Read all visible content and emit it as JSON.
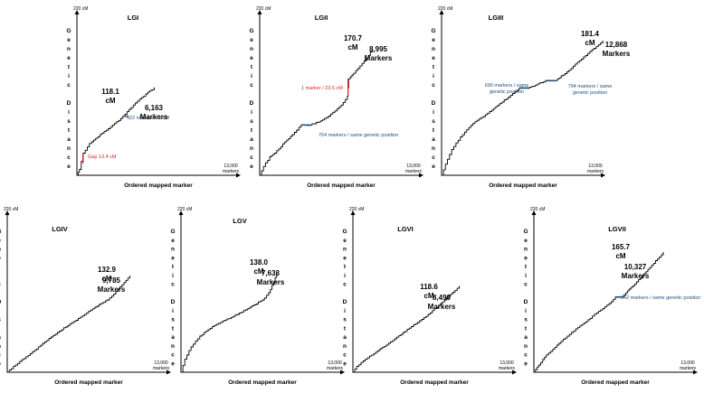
{
  "figure": {
    "y_axis_max_label": "220 cM",
    "x_axis_max_label": [
      "13,000",
      "markers"
    ],
    "x_axis_title": "Ordered mapped marker",
    "y_axis_title_letters": [
      "G",
      "e",
      "n",
      "e",
      "t",
      "i",
      "c",
      "",
      "D",
      "i",
      "s",
      "t",
      "a",
      "n",
      "c",
      "e"
    ],
    "colors": {
      "curve": "#000000",
      "blue_annotation": "#1f4e79",
      "red_annotation": "#e02020",
      "axis": "#000000"
    }
  },
  "chart_data": [
    {
      "type": "line",
      "title": "LGI",
      "xlim": [
        0,
        13000
      ],
      "ylim": [
        0,
        220
      ],
      "total_markers": 6163,
      "max_cM": 118.1,
      "label_cM": "118.1",
      "label_cM_unit": "cM",
      "label_markers": "6,163",
      "label_markers_unit": "Markers",
      "series": [
        {
          "values": {
            "x": [
              0,
              200,
              500,
              1000,
              1500,
              2000,
              2500,
              3000,
              3500,
              4000,
              4500,
              5000,
              5500,
              6163
            ],
            "y": [
              0,
              8,
              30,
              43,
              50,
              57,
              63,
              70,
              77,
              86,
              95,
              103,
              110,
              118.1
            ]
          }
        }
      ],
      "annotations": [
        {
          "text": "Gap 13.4 cM",
          "color": "red",
          "x": 480,
          "y1": 16,
          "y2": 29.4
        },
        {
          "text": "422  markers / 1 cM",
          "color": "blue",
          "x1": 3650,
          "x2": 4072,
          "y": 80
        }
      ]
    },
    {
      "type": "line",
      "title": "LGII",
      "xlim": [
        0,
        13000
      ],
      "ylim": [
        0,
        220
      ],
      "total_markers": 8995,
      "max_cM": 170.7,
      "label_cM": "170.7",
      "label_cM_unit": "cM",
      "label_markers": "8,995",
      "label_markers_unit": "Markers",
      "series": [
        {
          "values": {
            "x": [
              0,
              300,
              800,
              1200,
              2000,
              2600,
              3300,
              4000,
              4700,
              5500,
              6500,
              7000,
              7100,
              7500,
              8000,
              8500,
              8995
            ],
            "y": [
              0,
              12,
              25,
              30,
              45,
              55,
              68,
              68,
              72,
              80,
              95,
              107,
              130.5,
              138,
              148,
              158,
              170.7
            ]
          }
        }
      ],
      "annotations": [
        {
          "text": "1 marker / 23.5 cM",
          "color": "red",
          "x": 7050,
          "y1": 107,
          "y2": 130.5
        },
        {
          "text": "704 markers / same genetic position",
          "color": "blue",
          "x1": 3300,
          "x2": 4004,
          "y": 68
        }
      ]
    },
    {
      "type": "line",
      "title": "LGIII",
      "xlim": [
        0,
        13000
      ],
      "ylim": [
        0,
        220
      ],
      "total_markers": 12868,
      "max_cM": 181.4,
      "label_cM": "181.4",
      "label_cM_unit": "cM",
      "label_markers": "12,868",
      "label_markers_unit": "Markers",
      "series": [
        {
          "values": {
            "x": [
              0,
              300,
              800,
              1500,
              2500,
              3500,
              4500,
              5500,
              6200,
              6890,
              7500,
              8300,
              9094,
              10000,
              11000,
              12000,
              12868
            ],
            "y": [
              0,
              15,
              35,
              52,
              70,
              82,
              95,
              108,
              118,
              118,
              122,
              128,
              128,
              140,
              155,
              170,
              181.4
            ]
          }
        }
      ],
      "annotations": [
        {
          "text": [
            "690 markers / same",
            "genetic position"
          ],
          "color": "blue",
          "x1": 6200,
          "x2": 6890,
          "y": 118
        },
        {
          "text": [
            "794 markers / same",
            "genetic position"
          ],
          "color": "blue",
          "x1": 8300,
          "x2": 9094,
          "y": 128
        }
      ]
    },
    {
      "type": "line",
      "title": "LGIV",
      "xlim": [
        0,
        13000
      ],
      "ylim": [
        0,
        220
      ],
      "total_markers": 9785,
      "max_cM": 132.9,
      "label_cM": "132.9",
      "label_cM_unit": "cM",
      "label_markers": "9,785",
      "label_markers_unit": "Markers",
      "series": [
        {
          "values": {
            "x": [
              0,
              500,
              1000,
              2000,
              3000,
              4000,
              5000,
              6000,
              7000,
              8000,
              8500,
              9000,
              9785
            ],
            "y": [
              0,
              8,
              15,
              28,
              42,
              55,
              67,
              78,
              90,
              100,
              108,
              118,
              132.9
            ]
          }
        }
      ],
      "annotations": []
    },
    {
      "type": "line",
      "title": "LGV",
      "xlim": [
        0,
        13000
      ],
      "ylim": [
        0,
        220
      ],
      "total_markers": 7633,
      "max_cM": 138.0,
      "label_cM": "138.0",
      "label_cM_unit": "cM",
      "label_markers": "7,633",
      "label_markers_unit": "Markers",
      "series": [
        {
          "values": {
            "x": [
              0,
              300,
              800,
              1500,
              2500,
              3500,
              4500,
              5500,
              6500,
              7000,
              7400,
              7633
            ],
            "y": [
              0,
              18,
              35,
              50,
              63,
              72,
              80,
              90,
              100,
              110,
              125,
              138
            ]
          }
        }
      ],
      "annotations": []
    },
    {
      "type": "line",
      "title": "LGVI",
      "xlim": [
        0,
        13000
      ],
      "ylim": [
        0,
        220
      ],
      "total_markers": 8490,
      "max_cM": 118.6,
      "label_cM": "118.6",
      "label_cM_unit": "cM",
      "label_markers": "8,490",
      "label_markers_unit": "Markers",
      "series": [
        {
          "values": {
            "x": [
              0,
              300,
              1000,
              2000,
              3000,
              4000,
              5000,
              6000,
              7000,
              7800,
              8490
            ],
            "y": [
              0,
              8,
              18,
              30,
              42,
              55,
              67,
              80,
              95,
              108,
              118.6
            ]
          }
        }
      ],
      "annotations": []
    },
    {
      "type": "line",
      "title": "LGVII",
      "xlim": [
        0,
        13000
      ],
      "ylim": [
        0,
        220
      ],
      "total_markers": 10327,
      "max_cM": 165.7,
      "label_cM": "165.7",
      "label_cM_unit": "cM",
      "label_markers": "10,327",
      "label_markers_unit": "Markers",
      "series": [
        {
          "values": {
            "x": [
              0,
              400,
              1000,
              2000,
              3000,
              4000,
              5000,
              6000,
              6500,
              7042,
              7600,
              8500,
              9400,
              10327
            ],
            "y": [
              0,
              10,
              24,
              40,
              55,
              68,
              82,
              95,
              104,
              104,
              115,
              130,
              148,
              165.7
            ]
          }
        }
      ],
      "annotations": [
        {
          "text": "542 markers / same genetic position",
          "color": "blue",
          "x1": 6500,
          "x2": 7042,
          "y": 104
        }
      ]
    }
  ]
}
